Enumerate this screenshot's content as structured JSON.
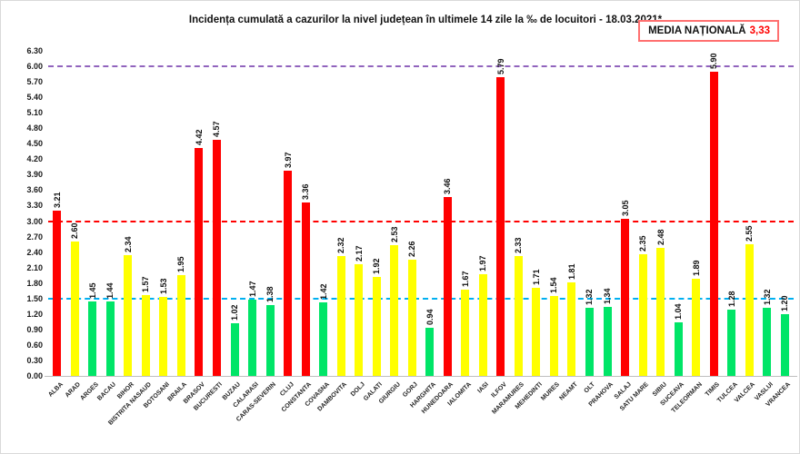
{
  "page": {
    "title": "Incidența cumulată a cazurilor la nivel județean în ultimele 14 zile la ‰ de locuitori - 18.03.2021*",
    "national_average_label": "MEDIA NAȚIONALĂ",
    "national_average_value": "3,33"
  },
  "colors": {
    "bar_red": "#ff0000",
    "bar_yellow": "#ffff00",
    "bar_green": "#00e567",
    "line_purple": "#9164bd",
    "line_red": "#ff0000",
    "line_blue": "#00b0f0",
    "box_border": "#ff7070",
    "value_red": "#ff0000"
  },
  "chart_data": {
    "type": "bar",
    "title": "Incidența cumulată a cazurilor la nivel județean în ultimele 14 zile la ‰ de locuitori - 18.03.2021*",
    "xlabel": "",
    "ylabel": "",
    "ylim": [
      0,
      6.3
    ],
    "ytick_step": 0.3,
    "yticks": [
      "0.00",
      "0.30",
      "0.60",
      "0.90",
      "1.20",
      "1.50",
      "1.80",
      "2.10",
      "2.40",
      "2.70",
      "3.00",
      "3.30",
      "3.60",
      "3.90",
      "4.20",
      "4.50",
      "4.80",
      "5.10",
      "5.40",
      "5.70",
      "6.00",
      "6.30"
    ],
    "grid": false,
    "legend": "none",
    "thresholds": [
      {
        "value": 6.0,
        "color_key": "line_purple"
      },
      {
        "value": 3.0,
        "color_key": "line_red"
      },
      {
        "value": 1.5,
        "color_key": "line_blue"
      }
    ],
    "categories": [
      "ALBA",
      "ARAD",
      "ARGES",
      "BACAU",
      "BIHOR",
      "BISTRITA NASAUD",
      "BOTOSANI",
      "BRAILA",
      "BRASOV",
      "BUCURESTI",
      "BUZAU",
      "CALARASI",
      "CARAS-SEVERIN",
      "CLUJ",
      "CONSTANTA",
      "COVASNA",
      "DAMBOVITA",
      "DOLJ",
      "GALATI",
      "GIURGIU",
      "GORJ",
      "HARGHITA",
      "HUNEDOARA",
      "IALOMITA",
      "IASI",
      "ILFOV",
      "MARAMURES",
      "MEHEDINTI",
      "MURES",
      "NEAMT",
      "OLT",
      "PRAHOVA",
      "SALAJ",
      "SATU MARE",
      "SIBIU",
      "SUCEAVA",
      "TELEORMAN",
      "TIMIS",
      "TULCEA",
      "VALCEA",
      "VASLUI",
      "VRANCEA"
    ],
    "values": [
      3.21,
      2.6,
      1.45,
      1.44,
      2.34,
      1.57,
      1.53,
      1.95,
      4.42,
      4.57,
      1.02,
      1.47,
      1.38,
      3.97,
      3.36,
      1.42,
      2.32,
      2.17,
      1.92,
      2.53,
      2.26,
      0.94,
      3.46,
      1.67,
      1.97,
      5.79,
      2.33,
      1.71,
      1.54,
      1.81,
      1.32,
      1.34,
      3.05,
      2.35,
      2.48,
      1.04,
      1.89,
      5.9,
      1.28,
      2.55,
      1.32,
      1.2
    ],
    "bar_colors": [
      "red",
      "yellow",
      "green",
      "green",
      "yellow",
      "yellow",
      "yellow",
      "yellow",
      "red",
      "red",
      "green",
      "green",
      "green",
      "red",
      "red",
      "green",
      "yellow",
      "yellow",
      "yellow",
      "yellow",
      "yellow",
      "green",
      "red",
      "yellow",
      "yellow",
      "red",
      "yellow",
      "yellow",
      "yellow",
      "yellow",
      "green",
      "green",
      "red",
      "yellow",
      "yellow",
      "green",
      "yellow",
      "red",
      "green",
      "yellow",
      "green",
      "green"
    ]
  }
}
